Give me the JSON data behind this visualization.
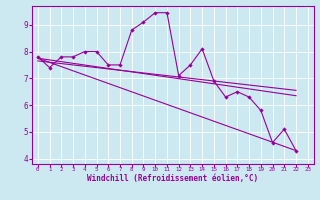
{
  "background_color": "#cce8f0",
  "plot_bg_color": "#cce8f0",
  "line_color": "#990099",
  "xlabel": "Windchill (Refroidissement éolien,°C)",
  "xlim": [
    -0.5,
    23.5
  ],
  "ylim": [
    3.8,
    9.7
  ],
  "yticks": [
    4,
    5,
    6,
    7,
    8,
    9
  ],
  "xticks": [
    0,
    1,
    2,
    3,
    4,
    5,
    6,
    7,
    8,
    9,
    10,
    11,
    12,
    13,
    14,
    15,
    16,
    17,
    18,
    19,
    20,
    21,
    22,
    23
  ],
  "series1_x": [
    0,
    1,
    2,
    3,
    4,
    5,
    6,
    7,
    8,
    9,
    10,
    11,
    12,
    13,
    14,
    15,
    16,
    17,
    18,
    19,
    20,
    21,
    22
  ],
  "series1_y": [
    7.8,
    7.4,
    7.8,
    7.8,
    8.0,
    8.0,
    7.5,
    7.5,
    8.8,
    9.1,
    9.45,
    9.45,
    7.1,
    7.5,
    8.1,
    6.9,
    6.3,
    6.5,
    6.3,
    5.8,
    4.6,
    5.1,
    4.3
  ],
  "series2_x": [
    0,
    22
  ],
  "series2_y": [
    7.75,
    6.35
  ],
  "series3_x": [
    0,
    22
  ],
  "series3_y": [
    7.75,
    4.3
  ],
  "series4_x": [
    0,
    22
  ],
  "series4_y": [
    7.65,
    6.55
  ]
}
